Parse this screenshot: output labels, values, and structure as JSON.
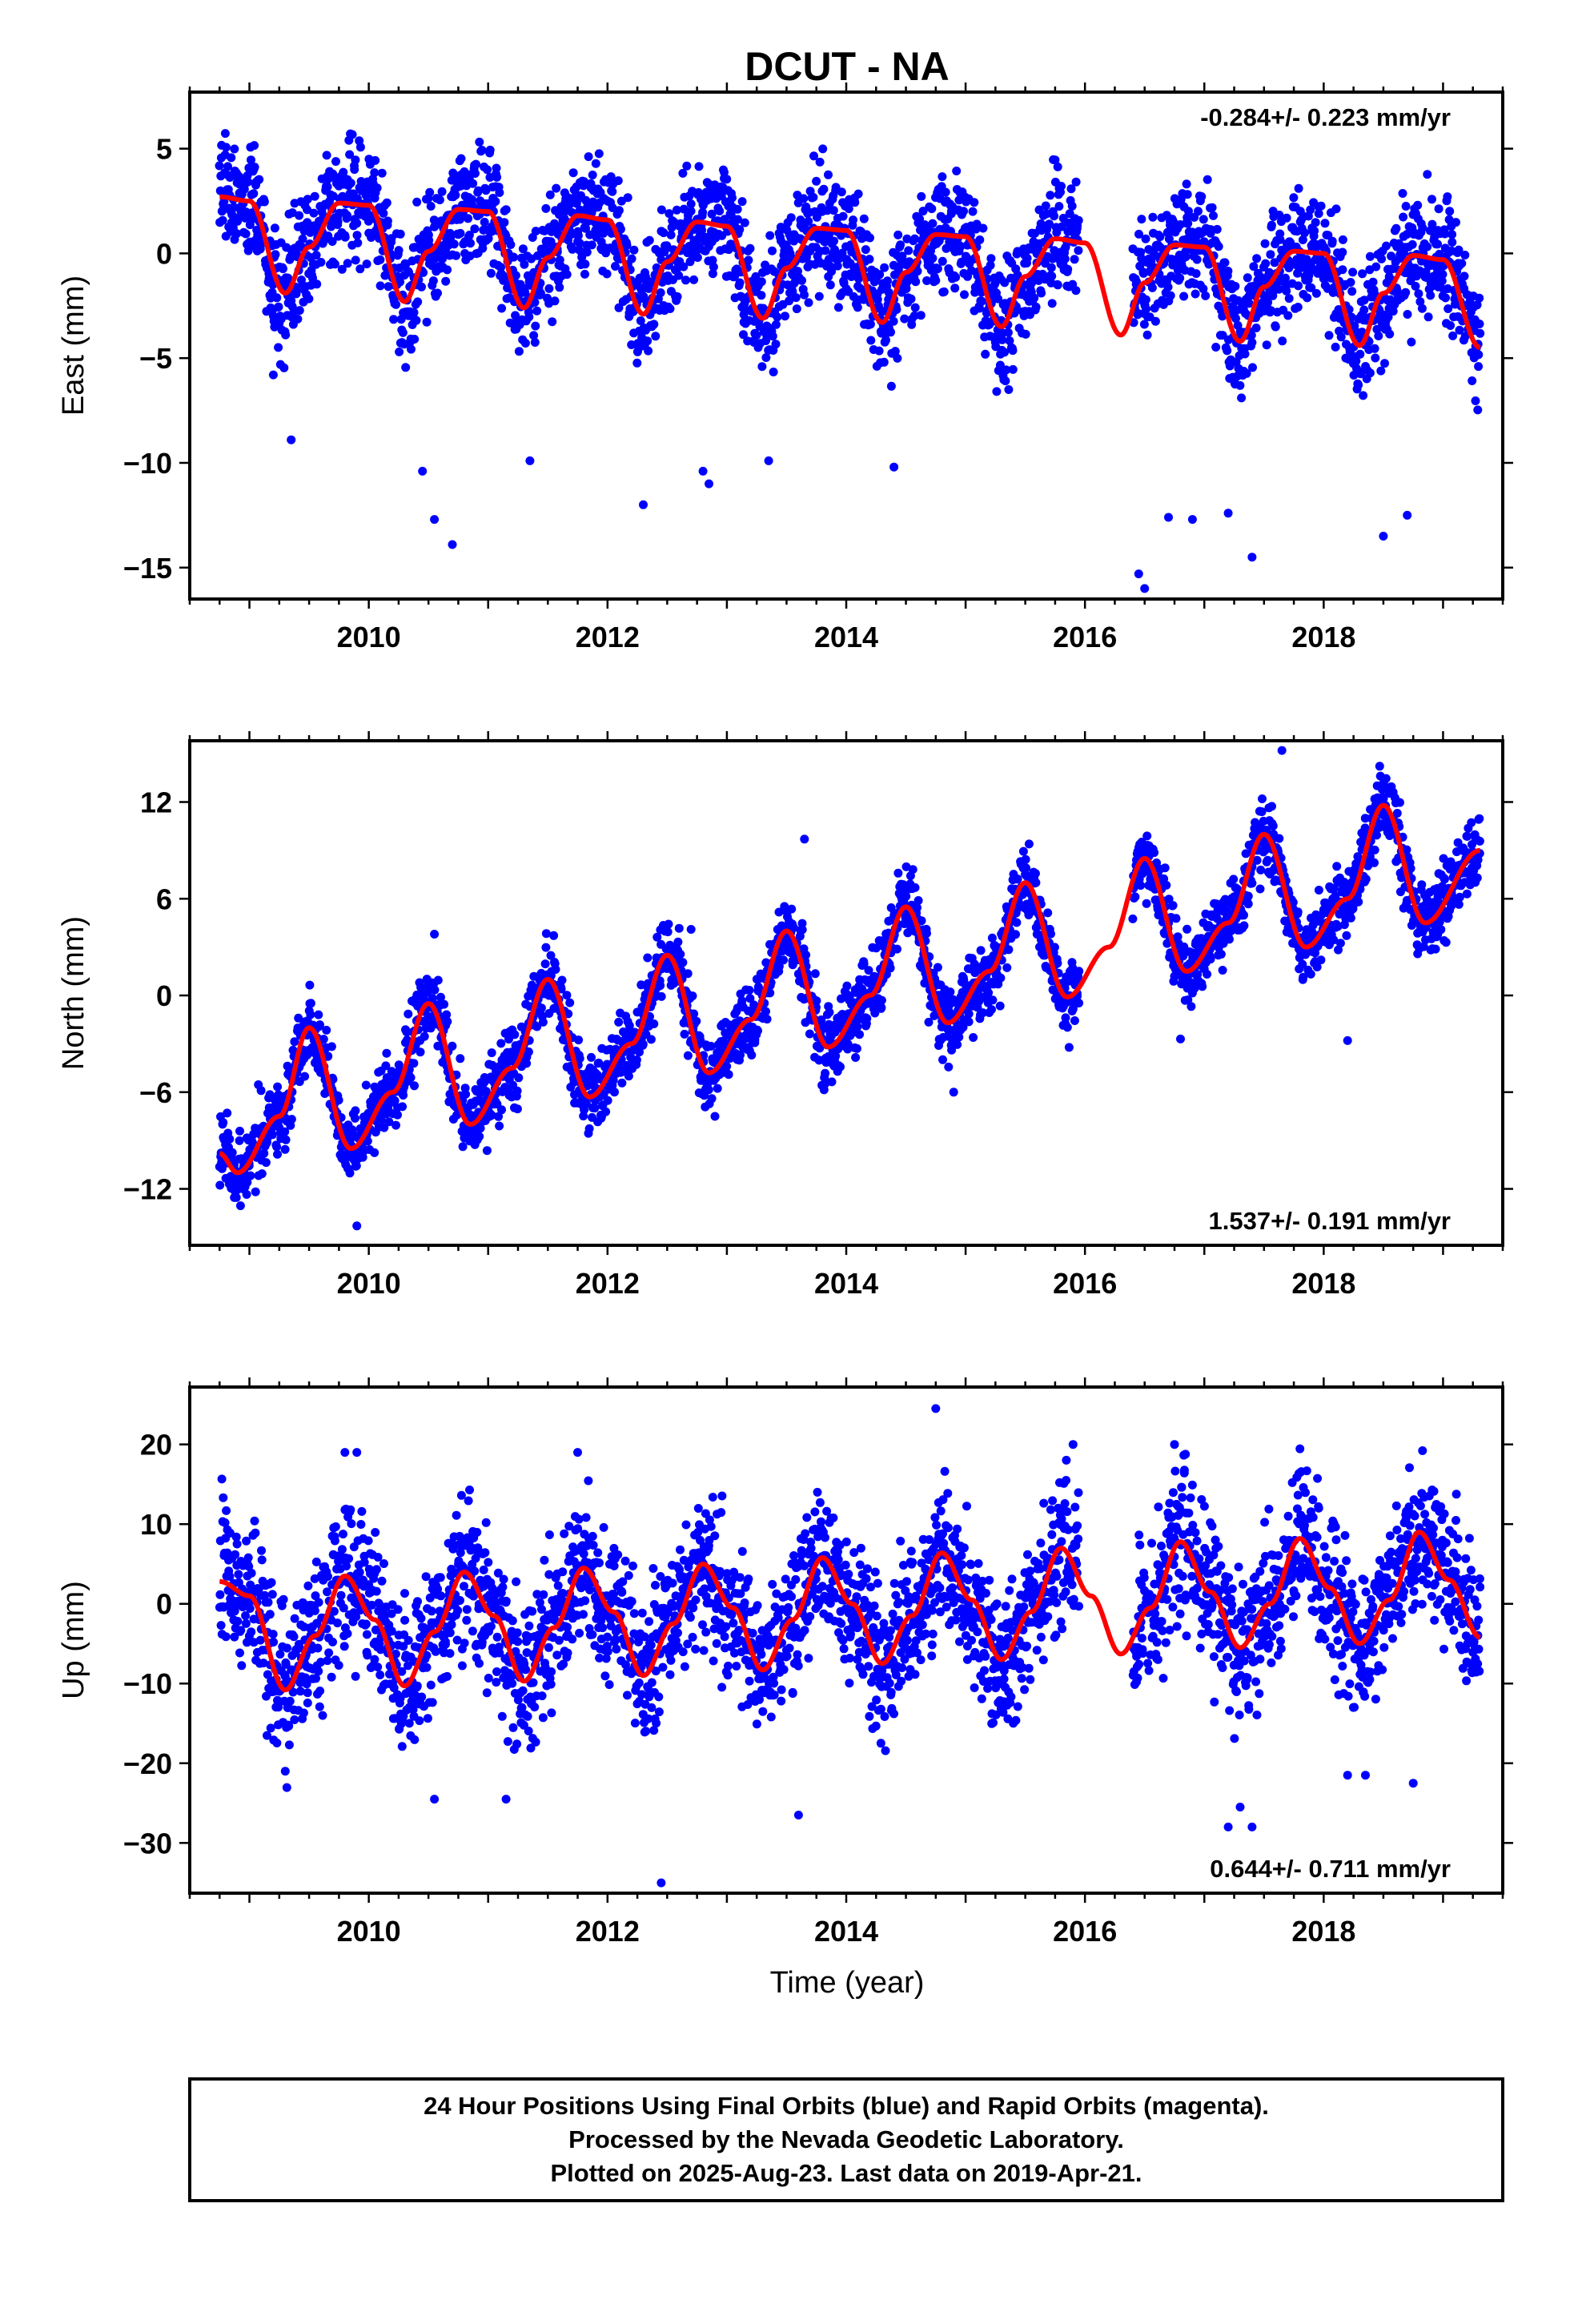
{
  "title": "DCUT - NA",
  "xlabel": "Time (year)",
  "footer": {
    "line1": "24 Hour Positions Using Final Orbits (blue) and Rapid Orbits (magenta).",
    "line2": "Processed by the Nevada Geodetic Laboratory.",
    "line3": "Plotted on 2025-Aug-23. Last data on 2019-Apr-21."
  },
  "colors": {
    "final_orbits": "#0000ff",
    "model_fit": "#ff0000",
    "rapid_orbits": "#ff00ff"
  },
  "chart_data": [
    {
      "type": "scatter",
      "ylabel": "East (mm)",
      "rate_label": "-0.284+/- 0.223 mm/yr",
      "rate_position": "top-right",
      "xlim": [
        2008.5,
        2019.5
      ],
      "ylim": [
        -16.5,
        7.7
      ],
      "x_ticks": [
        2010,
        2012,
        2014,
        2016,
        2018
      ],
      "x_tick_labels": [
        "2010",
        "2012",
        "2014",
        "2016",
        "2018"
      ],
      "y_ticks": [
        5,
        0,
        -5,
        -10,
        -15
      ],
      "y_tick_labels": [
        "5",
        "0",
        "−5",
        "−10",
        "−15"
      ],
      "grid": false,
      "data_start": 2008.75,
      "data_end": 2019.31,
      "gap": [
        2015.95,
        2016.4
      ],
      "series": [
        {
          "role": "model",
          "x": [
            2008.75,
            2009.0,
            2009.3,
            2009.5,
            2009.75,
            2010.0,
            2010.3,
            2010.5,
            2010.75,
            2011.0,
            2011.3,
            2011.5,
            2011.75,
            2012.0,
            2012.3,
            2012.5,
            2012.75,
            2013.0,
            2013.3,
            2013.5,
            2013.75,
            2014.0,
            2014.3,
            2014.5,
            2014.75,
            2015.0,
            2015.3,
            2015.5,
            2015.75,
            2016.0,
            2016.3,
            2016.5,
            2016.75,
            2017.0,
            2017.3,
            2017.5,
            2017.75,
            2018.0,
            2018.3,
            2018.5,
            2018.75,
            2019.0,
            2019.31
          ],
          "y": [
            2.7,
            2.5,
            -1.9,
            0.3,
            2.4,
            2.3,
            -2.3,
            0.1,
            2.1,
            2.0,
            -2.6,
            -0.2,
            1.8,
            1.6,
            -2.9,
            -0.4,
            1.5,
            1.3,
            -3.1,
            -0.7,
            1.2,
            1.1,
            -3.3,
            -0.9,
            0.9,
            0.8,
            -3.5,
            -1.1,
            0.7,
            0.5,
            -3.9,
            -1.4,
            0.4,
            0.3,
            -4.2,
            -1.6,
            0.1,
            0.0,
            -4.4,
            -1.9,
            -0.1,
            -0.3,
            -4.5
          ]
        }
      ],
      "scatter": {
        "color": "#0000ff",
        "spread": 1.5,
        "outliers_x": [
          2009.2,
          2009.35,
          2010.45,
          2010.55,
          2010.7,
          2011.35,
          2012.3,
          2012.8,
          2012.85,
          2013.35,
          2014.4,
          2016.45,
          2016.5,
          2016.7,
          2016.9,
          2017.2,
          2017.4,
          2018.5,
          2018.7
        ],
        "outliers_y": [
          -5.8,
          -8.9,
          -10.4,
          -12.7,
          -13.9,
          -9.9,
          -12.0,
          -10.4,
          -11.0,
          -9.9,
          -10.2,
          -15.3,
          -16.0,
          -12.6,
          -12.7,
          -12.4,
          -14.5,
          -13.5,
          -12.5
        ]
      }
    },
    {
      "type": "scatter",
      "ylabel": "North (mm)",
      "rate_label": "1.537+/- 0.191 mm/yr",
      "rate_position": "bottom-right",
      "xlim": [
        2008.5,
        2019.5
      ],
      "ylim": [
        -15.5,
        15.8
      ],
      "x_ticks": [
        2010,
        2012,
        2014,
        2016,
        2018
      ],
      "x_tick_labels": [
        "2010",
        "2012",
        "2014",
        "2016",
        "2018"
      ],
      "y_ticks": [
        12,
        6,
        0,
        -6,
        -12
      ],
      "y_tick_labels": [
        "12",
        "6",
        "0",
        "−6",
        "−12"
      ],
      "grid": false,
      "data_start": 2008.75,
      "data_end": 2019.31,
      "gap": [
        2015.95,
        2016.4
      ],
      "series": [
        {
          "role": "model",
          "x": [
            2008.75,
            2008.9,
            2009.25,
            2009.5,
            2009.85,
            2010.2,
            2010.5,
            2010.85,
            2011.2,
            2011.5,
            2011.85,
            2012.2,
            2012.5,
            2012.85,
            2013.2,
            2013.5,
            2013.85,
            2014.2,
            2014.5,
            2014.85,
            2015.2,
            2015.5,
            2015.85,
            2016.2,
            2016.5,
            2016.85,
            2017.2,
            2017.5,
            2017.85,
            2018.2,
            2018.5,
            2018.85,
            2019.31
          ],
          "y": [
            -9.8,
            -11.0,
            -7.5,
            -2.0,
            -9.5,
            -6.0,
            -0.5,
            -8.0,
            -4.5,
            1.0,
            -6.3,
            -3.0,
            2.5,
            -4.8,
            -1.5,
            4.0,
            -3.2,
            0.0,
            5.5,
            -1.7,
            1.5,
            7.0,
            -0.1,
            3.0,
            8.5,
            1.5,
            4.5,
            10.0,
            3.0,
            6.0,
            11.8,
            4.5,
            9.0
          ]
        }
      ],
      "scatter": {
        "color": "#0000ff",
        "spread": 1.2,
        "outliers_x": [
          2009.7,
          2009.9,
          2010.55,
          2012.7,
          2012.9,
          2013.65,
          2014.9,
          2016.8,
          2017.65,
          2018.2
        ],
        "outliers_y": [
          -5.2,
          -14.3,
          3.8,
          4.1,
          -7.5,
          9.7,
          -6.0,
          -2.7,
          15.2,
          -2.8
        ]
      }
    },
    {
      "type": "scatter",
      "ylabel": "Up (mm)",
      "rate_label": "0.644+/- 0.711 mm/yr",
      "rate_position": "bottom-right",
      "xlim": [
        2008.5,
        2019.5
      ],
      "ylim": [
        -36.3,
        27.2
      ],
      "x_ticks": [
        2010,
        2012,
        2014,
        2016,
        2018
      ],
      "x_tick_labels": [
        "2010",
        "2012",
        "2014",
        "2016",
        "2018"
      ],
      "y_ticks": [
        20,
        10,
        0,
        -10,
        -20,
        -30
      ],
      "y_tick_labels": [
        "20",
        "10",
        "0",
        "−10",
        "−20",
        "−30"
      ],
      "grid": false,
      "data_start": 2008.75,
      "data_end": 2019.31,
      "gap": [
        2015.95,
        2016.4
      ],
      "series": [
        {
          "role": "model",
          "x": [
            2008.75,
            2009.0,
            2009.3,
            2009.55,
            2009.8,
            2010.05,
            2010.3,
            2010.55,
            2010.8,
            2011.05,
            2011.3,
            2011.55,
            2011.8,
            2012.05,
            2012.3,
            2012.55,
            2012.8,
            2013.05,
            2013.3,
            2013.55,
            2013.8,
            2014.05,
            2014.3,
            2014.55,
            2014.8,
            2015.05,
            2015.3,
            2015.55,
            2015.8,
            2016.05,
            2016.3,
            2016.55,
            2016.8,
            2017.05,
            2017.3,
            2017.55,
            2017.8,
            2018.05,
            2018.3,
            2018.55,
            2018.8,
            2019.05,
            2019.31
          ],
          "y": [
            2.8,
            1.0,
            -10.8,
            -4.0,
            3.5,
            -2.0,
            -10.3,
            -3.5,
            4.0,
            -1.5,
            -9.7,
            -3.0,
            4.5,
            -1.0,
            -9.0,
            -2.5,
            5.0,
            -0.5,
            -8.3,
            -2.0,
            5.8,
            0.0,
            -7.5,
            -1.5,
            6.4,
            0.5,
            -7.0,
            -1.0,
            7.0,
            1.0,
            -6.3,
            -0.5,
            7.8,
            1.5,
            -5.5,
            0.0,
            8.2,
            2.0,
            -5.0,
            0.5,
            9.0,
            3.0,
            -4.2
          ]
        }
      ],
      "scatter": {
        "color": "#0000ff",
        "spread": 4.8,
        "outliers_x": [
          2009.3,
          2009.8,
          2009.9,
          2010.55,
          2011.15,
          2011.75,
          2012.45,
          2013.6,
          2014.75,
          2015.9,
          2016.75,
          2017.2,
          2017.3,
          2017.4,
          2018.2,
          2018.35,
          2018.75
        ],
        "outliers_y": [
          -21.0,
          19.0,
          19.0,
          -24.5,
          -24.5,
          19.0,
          -35.0,
          -26.5,
          24.5,
          20.0,
          20.0,
          -28.0,
          -25.5,
          -28.0,
          -21.5,
          -21.5,
          -22.5
        ]
      }
    }
  ]
}
